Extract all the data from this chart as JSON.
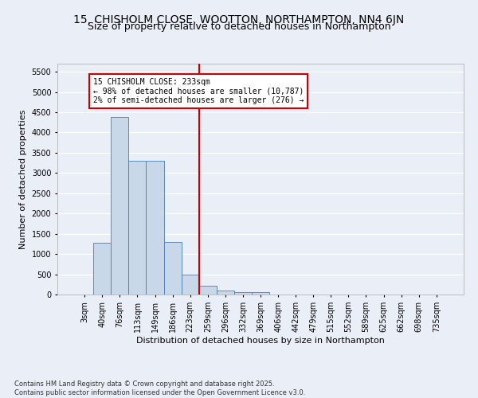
{
  "title": "15, CHISHOLM CLOSE, WOOTTON, NORTHAMPTON, NN4 6JN",
  "subtitle": "Size of property relative to detached houses in Northampton",
  "xlabel": "Distribution of detached houses by size in Northampton",
  "ylabel": "Number of detached properties",
  "footer_line1": "Contains HM Land Registry data © Crown copyright and database right 2025.",
  "footer_line2": "Contains public sector information licensed under the Open Government Licence v3.0.",
  "categories": [
    "3sqm",
    "40sqm",
    "76sqm",
    "113sqm",
    "149sqm",
    "186sqm",
    "223sqm",
    "259sqm",
    "296sqm",
    "332sqm",
    "369sqm",
    "406sqm",
    "442sqm",
    "479sqm",
    "515sqm",
    "552sqm",
    "589sqm",
    "625sqm",
    "662sqm",
    "698sqm",
    "735sqm"
  ],
  "bar_values": [
    0,
    1270,
    4380,
    3300,
    3300,
    1290,
    500,
    220,
    90,
    60,
    50,
    0,
    0,
    0,
    0,
    0,
    0,
    0,
    0,
    0,
    0
  ],
  "bar_color": "#c8d8e8",
  "bar_edge_color": "#4a7eb5",
  "vline_x_index": 6,
  "vline_color": "#cc0000",
  "annotation_title": "15 CHISHOLM CLOSE: 233sqm",
  "annotation_line1": "← 98% of detached houses are smaller (10,787)",
  "annotation_line2": "2% of semi-detached houses are larger (276) →",
  "annotation_box_color": "#cc0000",
  "ylim": [
    0,
    5700
  ],
  "yticks": [
    0,
    500,
    1000,
    1500,
    2000,
    2500,
    3000,
    3500,
    4000,
    4500,
    5000,
    5500
  ],
  "bg_color": "#eaeff7",
  "plot_bg_color": "#eaeff7",
  "grid_color": "#ffffff",
  "title_fontsize": 10,
  "subtitle_fontsize": 9,
  "label_fontsize": 8,
  "tick_fontsize": 7,
  "footer_fontsize": 6
}
